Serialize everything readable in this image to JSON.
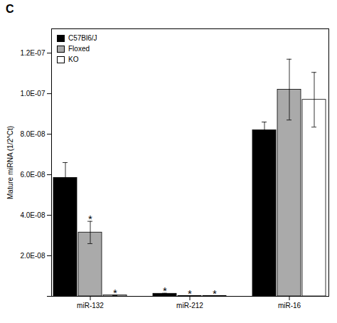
{
  "chart_data": {
    "type": "bar",
    "title": "C",
    "ylabel": "Mature miRNA (1/2^Ct)",
    "categories": [
      "miR-132",
      "miR-212",
      "miR-16"
    ],
    "series": [
      {
        "name": "C57Bl6/J",
        "color": "#000000",
        "values": [
          5.85e-08,
          1.3e-09,
          8.2e-08
        ],
        "errors": [
          7.5e-09,
          2e-10,
          4e-09
        ]
      },
      {
        "name": "Floxed",
        "color": "#aaaaaa",
        "values": [
          3.15e-08,
          2e-10,
          1.02e-07
        ],
        "errors": [
          5.5e-09,
          0.0,
          1.5e-08
        ]
      },
      {
        "name": "KO",
        "color": "#ffffff",
        "values": [
          5e-10,
          2e-10,
          9.7e-08
        ],
        "errors": [
          0.0,
          0.0,
          1.35e-08
        ]
      }
    ],
    "ylim": [
      0,
      1.32e-07
    ],
    "yticks": [
      {
        "value": 0,
        "label": ""
      },
      {
        "value": 2e-08,
        "label": "2.0E-08"
      },
      {
        "value": 4e-08,
        "label": "4.0E-08"
      },
      {
        "value": 6e-08,
        "label": "6.0E-08"
      },
      {
        "value": 8e-08,
        "label": "8.0E-08"
      },
      {
        "value": 1e-07,
        "label": "1.0E-07"
      },
      {
        "value": 1.2e-07,
        "label": "1.2E-07"
      }
    ],
    "legend": "upper left",
    "grid": false,
    "annotations": [
      {
        "category": "miR-132",
        "series": "Floxed",
        "text": "*"
      },
      {
        "category": "miR-132",
        "series": "KO",
        "text": "*"
      },
      {
        "category": "miR-212",
        "series": "C57Bl6/J",
        "text": "*"
      },
      {
        "category": "miR-212",
        "series": "Floxed",
        "text": "*"
      },
      {
        "category": "miR-212",
        "series": "KO",
        "text": "*"
      }
    ]
  }
}
